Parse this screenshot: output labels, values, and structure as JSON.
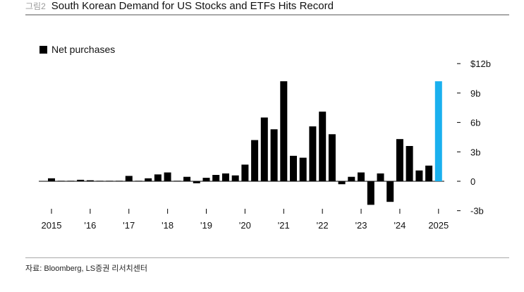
{
  "header": {
    "figure_label": "그림2",
    "title": "South Korean Demand for US Stocks and ETFs Hits Record"
  },
  "source": "자료: Bloomberg, LS증권 리서치센터",
  "colors": {
    "bar": "#000000",
    "highlight": "#1ab0ee",
    "axis": "#000000"
  },
  "chart_data": {
    "type": "bar",
    "title": "South Korean Demand for US Stocks and ETFs Hits Record",
    "legend": {
      "label": "Net purchases",
      "position": "top-left"
    },
    "ylim": [
      -3,
      12
    ],
    "y_ticks": [
      -3,
      0,
      3,
      6,
      9,
      12
    ],
    "y_tick_labels": [
      "-3b",
      "0",
      "3b",
      "6b",
      "9b",
      "$12b"
    ],
    "y_axis_position": "right",
    "grid": false,
    "x_tick_labels": [
      "2015",
      "'16",
      "'17",
      "'18",
      "'19",
      "'20",
      "'21",
      "'22",
      "'23",
      "'24",
      "2025"
    ],
    "x_tick_quarter_index": [
      0,
      4,
      8,
      12,
      16,
      20,
      24,
      28,
      32,
      36,
      40
    ],
    "series": [
      {
        "values": [
          0.3,
          0.05,
          0.05,
          0.15,
          0.1,
          0.05,
          0.05,
          0.05,
          0.55,
          0.05,
          0.3,
          0.7,
          0.9,
          0.05,
          0.45,
          -0.2,
          0.35,
          0.65,
          0.8,
          0.6,
          1.7,
          4.2,
          6.5,
          5.3,
          10.2,
          2.6,
          2.4,
          5.6,
          7.1,
          4.8,
          -0.3,
          0.45,
          0.9,
          -2.4,
          0.8,
          -2.1,
          4.3,
          3.6,
          1.1,
          1.6,
          10.2
        ],
        "highlight_index": 40
      }
    ]
  }
}
